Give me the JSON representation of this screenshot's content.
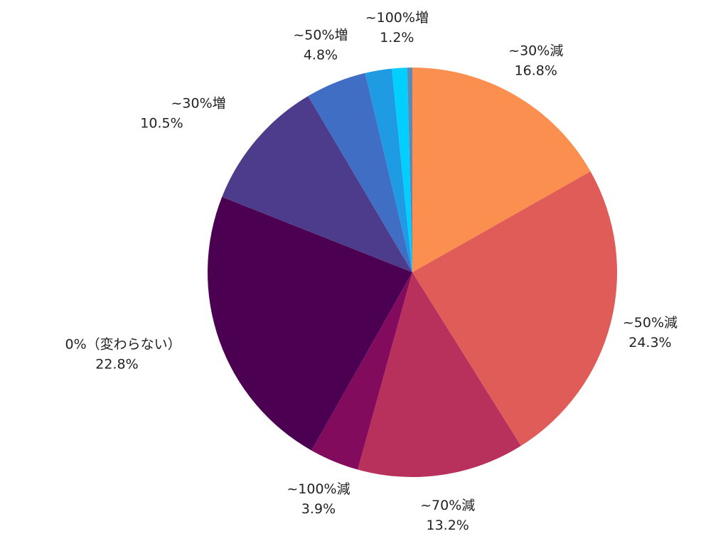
{
  "chart_data": {
    "type": "pie",
    "categories": [
      "~30%減",
      "~50%減",
      "~70%減",
      "~100%減",
      "0%（変わらない）",
      "~30%増",
      "~50%増",
      null,
      "~100%増",
      null
    ],
    "values": [
      16.8,
      24.3,
      13.2,
      3.9,
      22.8,
      10.5,
      4.8,
      2.1,
      1.2,
      0.4
    ],
    "value_labels": [
      "16.8%",
      "24.3%",
      "13.2%",
      "3.9%",
      "22.8%",
      "10.5%",
      "4.8%",
      null,
      "1.2%",
      null
    ],
    "colors": [
      "#fb8f50",
      "#e05c58",
      "#b8305c",
      "#830b5e",
      "#4b0051",
      "#4d3b8b",
      "#3f6ec4",
      "#1f9be3",
      "#00cfff",
      "#5b8bb5"
    ]
  }
}
